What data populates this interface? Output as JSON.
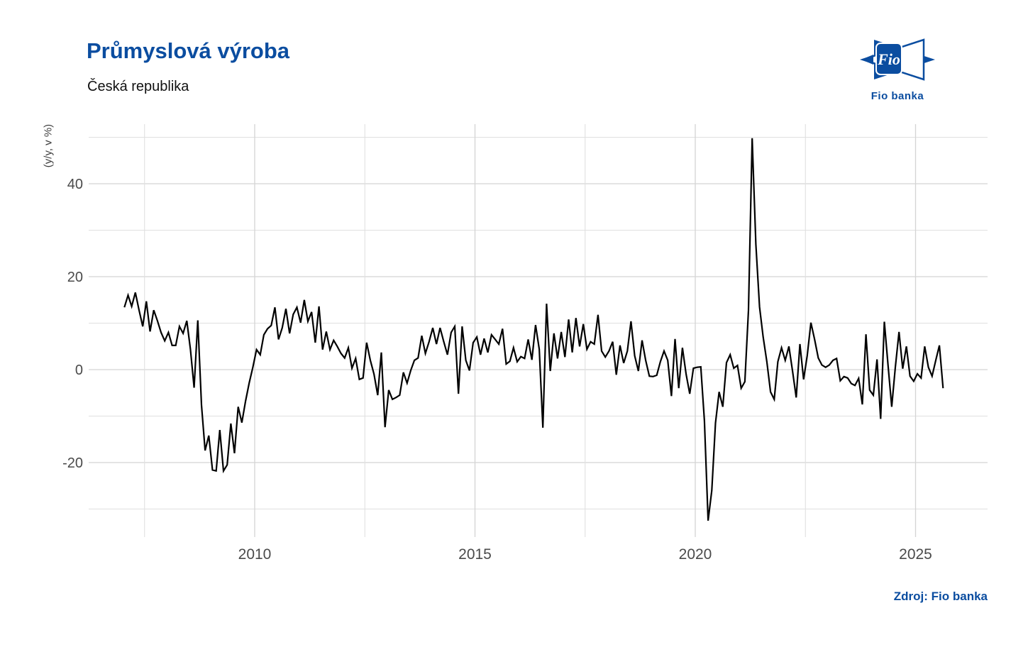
{
  "header": {
    "title": "Průmyslová výroba",
    "subtitle": "Česká republika"
  },
  "logo": {
    "box_text": "Fio",
    "caption": "Fio banka",
    "color": "#0b4da0"
  },
  "source": {
    "label": "Zdroj: Fio banka"
  },
  "colors": {
    "accent_blue": "#0b4da0",
    "line": "#000000",
    "grid_major": "#d4d4d4",
    "grid_minor": "#e0e0e0",
    "tick_label": "#4a4a4a"
  },
  "chart_data": {
    "type": "line",
    "title": "Průmyslová výroba",
    "subtitle": "Česká republika",
    "xlabel": "",
    "ylabel": "(y/y, v %)",
    "legend": false,
    "grid": true,
    "xlim": [
      2006.2,
      2026.6
    ],
    "ylim": [
      -35,
      52
    ],
    "x_tick_labels": [
      "2010",
      "2015",
      "2020",
      "2025"
    ],
    "x_tick_years": [
      2010,
      2015,
      2020,
      2025
    ],
    "x_minor_gridlines": [
      2007.5,
      2012.5,
      2017.5,
      2022.5
    ],
    "y_tick_labels": [
      "40",
      "20",
      "0",
      "-20"
    ],
    "y_tick_values": [
      40,
      20,
      0,
      -20
    ],
    "y_minor_gridlines": [
      50,
      30,
      10,
      -10,
      -30
    ],
    "series": [
      {
        "name": "Průmyslová výroba ČR (y/y, v %)",
        "start": "2007-01",
        "end": "2025-08",
        "frequency": "monthly",
        "values": [
          13.4,
          16,
          13.6,
          16.6,
          12.8,
          9.3,
          14.7,
          8.2,
          12.8,
          10.5,
          8,
          6.2,
          8,
          5.2,
          5.2,
          9.3,
          7.8,
          10.5,
          4.4,
          -3.9,
          10.6,
          -7.6,
          -17.4,
          -14.2,
          -21.6,
          -21.8,
          -13,
          -21.8,
          -20.5,
          -11.6,
          -18,
          -8,
          -11.4,
          -6.8,
          -2.9,
          0.5,
          4.3,
          3.2,
          7.5,
          8.8,
          9.5,
          13.4,
          6.5,
          9,
          13.1,
          7.8,
          11.9,
          13.4,
          10.1,
          15,
          10.4,
          12.4,
          5.8,
          13.6,
          4.3,
          8.2,
          4.3,
          6.3,
          5,
          3.5,
          2.5,
          4.7,
          0.3,
          2.4,
          -2.1,
          -1.8,
          5.8,
          2,
          -1,
          -5.5,
          3.7,
          -12.4,
          -4.4,
          -6.4,
          -6,
          -5.5,
          -0.6,
          -2.9,
          -0.2,
          2,
          2.5,
          7.3,
          3.5,
          6,
          9,
          5.5,
          9,
          6,
          3.2,
          8,
          9.3,
          -5.2,
          9.3,
          2,
          -0.2,
          5.8,
          7,
          3.2,
          6.7,
          3.7,
          7.5,
          6.5,
          5.5,
          8.8,
          1.2,
          1.8,
          4.7,
          1.7,
          2.8,
          2.4,
          6.5,
          2.1,
          9.6,
          4.4,
          -12.5,
          14.2,
          -0.3,
          7.8,
          2.4,
          8.1,
          2.7,
          10.8,
          3.7,
          11.1,
          5,
          9.8,
          4.4,
          6,
          5.5,
          11.8,
          4,
          2.7,
          4,
          6,
          -1.1,
          5.2,
          1.4,
          4,
          10.4,
          3,
          -0.3,
          6.3,
          2,
          -1.4,
          -1.5,
          -1.2,
          1.7,
          4,
          2,
          -5.7,
          6.6,
          -4,
          4.7,
          -1,
          -5.2,
          0.3,
          0.5,
          0.6,
          -11,
          -32.5,
          -26,
          -11.5,
          -4.8,
          -8,
          1.5,
          3.2,
          0.3,
          0.9,
          -4,
          -2.6,
          12.8,
          49.8,
          27,
          13.5,
          7,
          1.7,
          -4.8,
          -6.4,
          1.7,
          4.7,
          2,
          5,
          -0.3,
          -6,
          5.5,
          -2.1,
          3,
          10.1,
          6.5,
          2.5,
          1,
          0.5,
          1,
          2,
          2.4,
          -2.4,
          -1.5,
          -1.8,
          -3,
          -3.4,
          -1.9,
          -7.5,
          7.6,
          -4.4,
          -5.5,
          2.2,
          -10.6,
          10.3,
          1,
          -8,
          0.5,
          8.1,
          0.2,
          5,
          -1.4,
          -2.5,
          -0.9,
          -1.8,
          5,
          0.5,
          -1.4,
          2,
          5.2,
          -4
        ]
      }
    ]
  }
}
